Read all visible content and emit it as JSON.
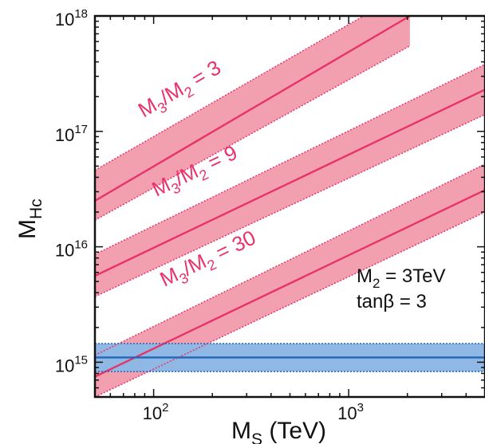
{
  "chart_data": {
    "type": "line",
    "title": "",
    "xlabel": {
      "base": "M",
      "sub": "S",
      "unit": "(TeV)"
    },
    "ylabel": {
      "base": "M",
      "sub": "Hc"
    },
    "xscale": "log",
    "yscale": "log",
    "xlim": [
      50,
      5000
    ],
    "ylim": [
      500000000000000.0,
      1e+18
    ],
    "grid": false,
    "x_ticks": [
      {
        "value": 100,
        "base": "10",
        "exp": "2"
      },
      {
        "value": 1000,
        "base": "10",
        "exp": "3"
      }
    ],
    "y_ticks": [
      {
        "value": 1000000000000000.0,
        "base": "10",
        "exp": "15"
      },
      {
        "value": 1e+16,
        "base": "10",
        "exp": "16"
      },
      {
        "value": 1e+17,
        "base": "10",
        "exp": "17"
      },
      {
        "value": 1e+18,
        "base": "10",
        "exp": "18"
      }
    ],
    "series": [
      {
        "label": {
          "base": "M",
          "sub1": "3",
          "mid": "/M",
          "sub2": "2",
          "tail": " = 3"
        },
        "color": "#e8336a",
        "band_color": "#f2a0b0",
        "x": [
          50,
          2060
        ],
        "y": [
          2.5e+16,
          1e+18
        ],
        "y_low": [
          1.7e+16,
          5.5e+17
        ],
        "y_high": [
          4.6e+16,
          1.7e+18
        ]
      },
      {
        "label": {
          "base": "M",
          "sub1": "3",
          "mid": "/M",
          "sub2": "2",
          "tail": " = 9"
        },
        "color": "#e8336a",
        "band_color": "#f2a0b0",
        "x": [
          50,
          5000
        ],
        "y": [
          5600000000000000.0,
          2.3e+17
        ],
        "y_low": [
          3700000000000000.0,
          1.4e+17
        ],
        "y_high": [
          8600000000000000.0,
          3.8e+17
        ]
      },
      {
        "label": {
          "base": "M",
          "sub1": "3",
          "mid": "/M",
          "sub2": "2",
          "tail": " = 30"
        },
        "color": "#e8336a",
        "band_color": "#f2a0b0",
        "x": [
          50,
          5000
        ],
        "y": [
          750000000000000.0,
          3.1e+16
        ],
        "y_low": [
          500000000000000.0,
          2e+16
        ],
        "y_high": [
          1150000000000000.0,
          5.2e+16
        ]
      },
      {
        "label": null,
        "color": "#2266b8",
        "band_color": "#90b8e4",
        "x": [
          50,
          5000
        ],
        "y": [
          1100000000000000.0,
          1100000000000000.0
        ],
        "y_low": [
          830000000000000.0,
          830000000000000.0
        ],
        "y_high": [
          1450000000000000.0,
          1450000000000000.0
        ]
      }
    ],
    "annotations": [
      {
        "base": "M",
        "sub": "2",
        "tail": " = 3TeV"
      },
      {
        "text": "tanβ = 3"
      }
    ]
  }
}
